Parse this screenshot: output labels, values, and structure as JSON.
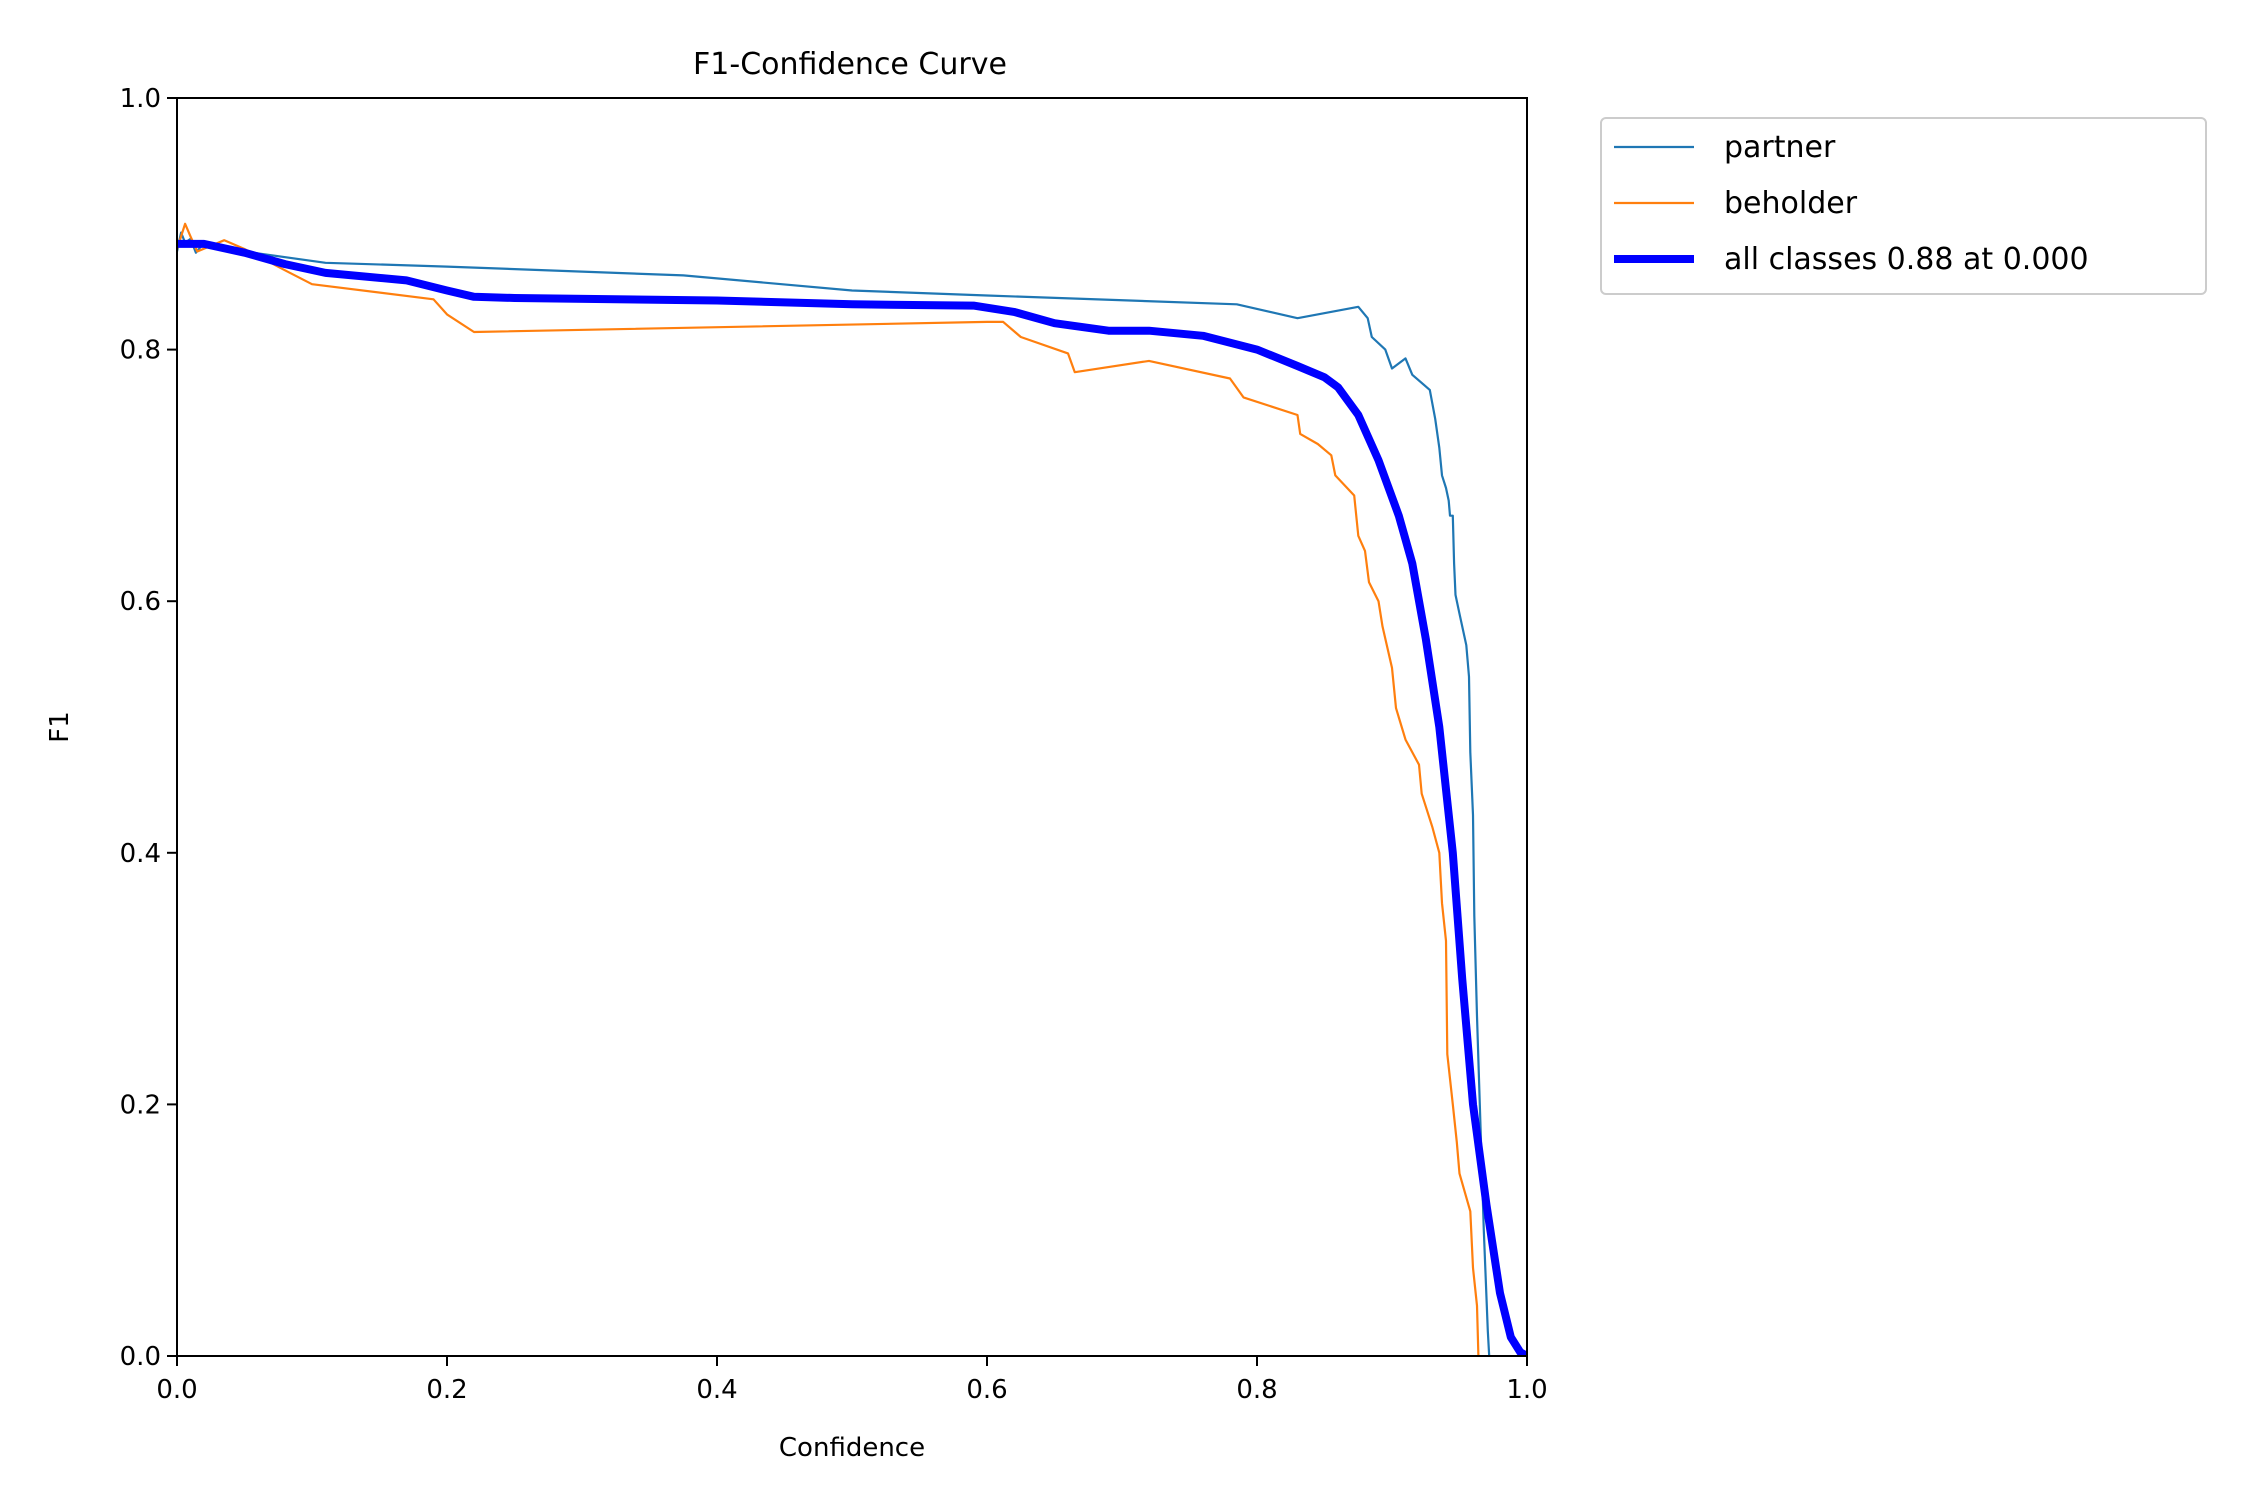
{
  "chart_data": {
    "type": "line",
    "title": "F1-Confidence Curve",
    "xlabel": "Confidence",
    "ylabel": "F1",
    "xlim": [
      0.0,
      1.0
    ],
    "ylim": [
      0.0,
      1.0
    ],
    "x_ticks": [
      0.0,
      0.2,
      0.4,
      0.6,
      0.8,
      1.0
    ],
    "y_ticks": [
      0.0,
      0.2,
      0.4,
      0.6,
      0.8,
      1.0
    ],
    "x_tick_labels": [
      "0.0",
      "0.2",
      "0.4",
      "0.6",
      "0.8",
      "1.0"
    ],
    "y_tick_labels": [
      "0.0",
      "0.2",
      "0.4",
      "0.6",
      "0.8",
      "1.0"
    ],
    "grid": false,
    "legend_placement": "outside-top-right",
    "series": [
      {
        "name": "partner",
        "color": "#1f77b4",
        "width": "thin",
        "points": [
          [
            0.0,
            0.878
          ],
          [
            0.003,
            0.893
          ],
          [
            0.006,
            0.885
          ],
          [
            0.01,
            0.888
          ],
          [
            0.014,
            0.877
          ],
          [
            0.02,
            0.885
          ],
          [
            0.05,
            0.878
          ],
          [
            0.11,
            0.869
          ],
          [
            0.2,
            0.866
          ],
          [
            0.375,
            0.859
          ],
          [
            0.5,
            0.847
          ],
          [
            0.6,
            0.843
          ],
          [
            0.785,
            0.836
          ],
          [
            0.83,
            0.825
          ],
          [
            0.875,
            0.834
          ],
          [
            0.882,
            0.825
          ],
          [
            0.885,
            0.81
          ],
          [
            0.895,
            0.8
          ],
          [
            0.9,
            0.785
          ],
          [
            0.91,
            0.793
          ],
          [
            0.915,
            0.78
          ],
          [
            0.928,
            0.768
          ],
          [
            0.932,
            0.745
          ],
          [
            0.935,
            0.722
          ],
          [
            0.937,
            0.7
          ],
          [
            0.94,
            0.69
          ],
          [
            0.942,
            0.68
          ],
          [
            0.943,
            0.668
          ],
          [
            0.945,
            0.668
          ],
          [
            0.946,
            0.63
          ],
          [
            0.947,
            0.605
          ],
          [
            0.95,
            0.59
          ],
          [
            0.955,
            0.565
          ],
          [
            0.957,
            0.54
          ],
          [
            0.958,
            0.48
          ],
          [
            0.96,
            0.43
          ],
          [
            0.961,
            0.35
          ],
          [
            0.963,
            0.27
          ],
          [
            0.965,
            0.2
          ],
          [
            0.968,
            0.1
          ],
          [
            0.971,
            0.02
          ],
          [
            0.972,
            0.0
          ]
        ]
      },
      {
        "name": "beholder",
        "color": "#ff7f0e",
        "width": "thin",
        "points": [
          [
            0.0,
            0.88
          ],
          [
            0.003,
            0.89
          ],
          [
            0.006,
            0.9
          ],
          [
            0.01,
            0.89
          ],
          [
            0.015,
            0.878
          ],
          [
            0.035,
            0.887
          ],
          [
            0.05,
            0.88
          ],
          [
            0.08,
            0.863
          ],
          [
            0.1,
            0.852
          ],
          [
            0.19,
            0.84
          ],
          [
            0.2,
            0.828
          ],
          [
            0.22,
            0.814
          ],
          [
            0.6,
            0.822
          ],
          [
            0.612,
            0.822
          ],
          [
            0.625,
            0.81
          ],
          [
            0.66,
            0.797
          ],
          [
            0.665,
            0.782
          ],
          [
            0.72,
            0.791
          ],
          [
            0.78,
            0.777
          ],
          [
            0.79,
            0.762
          ],
          [
            0.83,
            0.748
          ],
          [
            0.832,
            0.733
          ],
          [
            0.845,
            0.725
          ],
          [
            0.855,
            0.716
          ],
          [
            0.858,
            0.7
          ],
          [
            0.872,
            0.684
          ],
          [
            0.875,
            0.652
          ],
          [
            0.88,
            0.64
          ],
          [
            0.883,
            0.615
          ],
          [
            0.89,
            0.6
          ],
          [
            0.893,
            0.58
          ],
          [
            0.9,
            0.547
          ],
          [
            0.903,
            0.515
          ],
          [
            0.91,
            0.49
          ],
          [
            0.92,
            0.47
          ],
          [
            0.922,
            0.447
          ],
          [
            0.93,
            0.42
          ],
          [
            0.935,
            0.4
          ],
          [
            0.937,
            0.36
          ],
          [
            0.94,
            0.33
          ],
          [
            0.941,
            0.24
          ],
          [
            0.945,
            0.2
          ],
          [
            0.948,
            0.17
          ],
          [
            0.95,
            0.145
          ],
          [
            0.958,
            0.115
          ],
          [
            0.96,
            0.07
          ],
          [
            0.963,
            0.04
          ],
          [
            0.964,
            0.0
          ]
        ]
      },
      {
        "name": "all classes 0.88 at 0.000",
        "color": "#0000ff",
        "width": "thick",
        "points": [
          [
            0.0,
            0.884
          ],
          [
            0.02,
            0.884
          ],
          [
            0.05,
            0.877
          ],
          [
            0.08,
            0.868
          ],
          [
            0.11,
            0.861
          ],
          [
            0.17,
            0.855
          ],
          [
            0.2,
            0.847
          ],
          [
            0.22,
            0.842
          ],
          [
            0.25,
            0.841
          ],
          [
            0.4,
            0.839
          ],
          [
            0.5,
            0.836
          ],
          [
            0.59,
            0.835
          ],
          [
            0.62,
            0.83
          ],
          [
            0.65,
            0.821
          ],
          [
            0.69,
            0.815
          ],
          [
            0.72,
            0.815
          ],
          [
            0.76,
            0.811
          ],
          [
            0.8,
            0.8
          ],
          [
            0.83,
            0.787
          ],
          [
            0.85,
            0.778
          ],
          [
            0.86,
            0.77
          ],
          [
            0.875,
            0.748
          ],
          [
            0.89,
            0.712
          ],
          [
            0.905,
            0.668
          ],
          [
            0.915,
            0.63
          ],
          [
            0.925,
            0.57
          ],
          [
            0.935,
            0.5
          ],
          [
            0.945,
            0.4
          ],
          [
            0.952,
            0.3
          ],
          [
            0.96,
            0.2
          ],
          [
            0.97,
            0.12
          ],
          [
            0.98,
            0.05
          ],
          [
            0.988,
            0.015
          ],
          [
            0.995,
            0.003
          ],
          [
            1.0,
            0.0
          ]
        ]
      }
    ]
  }
}
